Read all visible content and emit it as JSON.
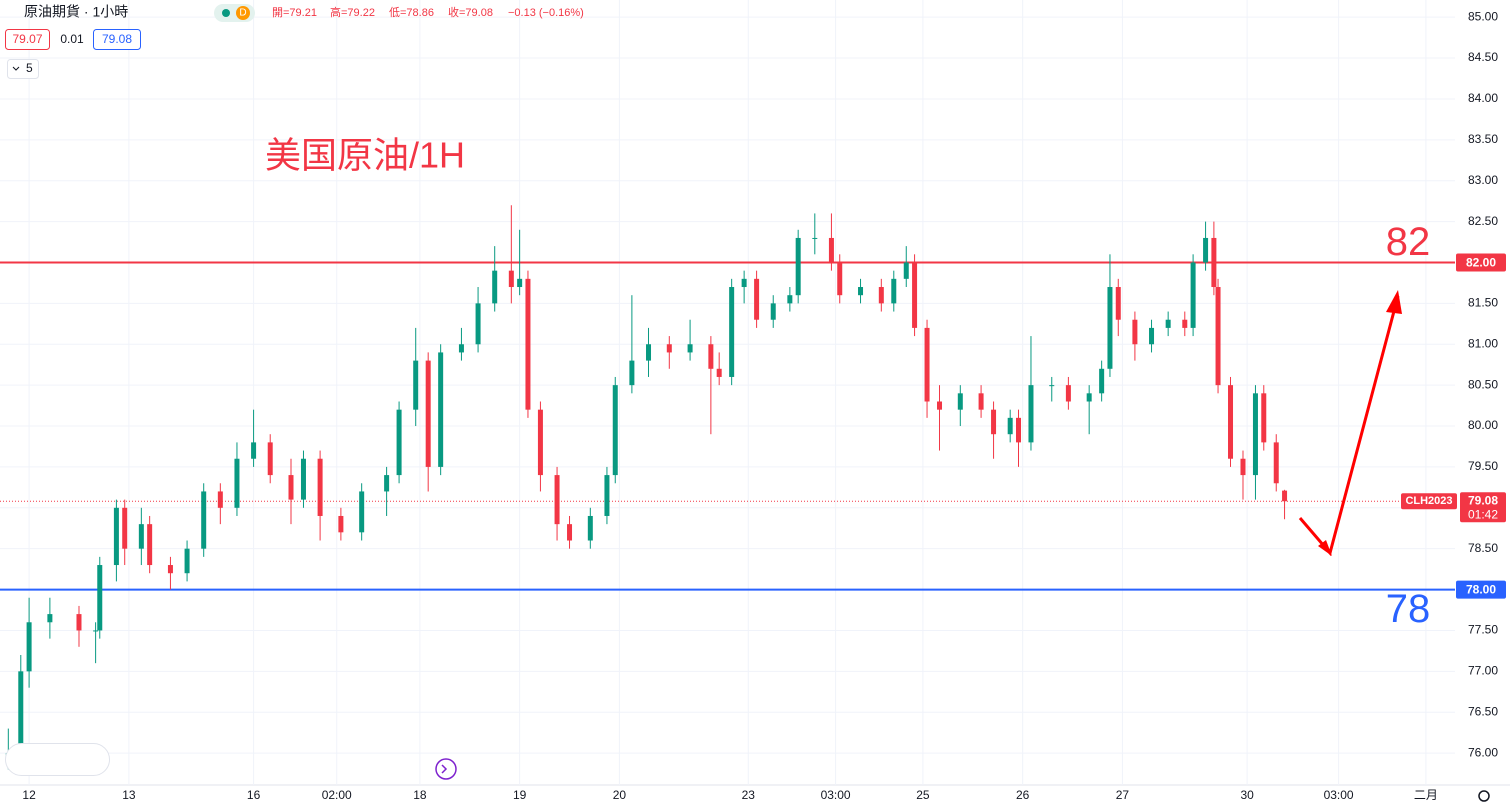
{
  "header": {
    "symbol": "原油期貨 · 1小時",
    "interval_badge": "D",
    "open": "開=79.21",
    "high": "高=79.22",
    "low": "低=78.86",
    "close": "收=79.08",
    "change": "−0.13 (−0.16%)",
    "bid": "79.07",
    "spread": "0.01",
    "ask": "79.08",
    "indicator_count": "5"
  },
  "chart_data": {
    "type": "candlestick",
    "annotation": "美国原油/1H",
    "up_color": "#089981",
    "down_color": "#f23645",
    "grid": true,
    "x": [
      0,
      3,
      5,
      10,
      17,
      21,
      22,
      26,
      28,
      32,
      34,
      39,
      43,
      47,
      51,
      55,
      59,
      63,
      68,
      71,
      75,
      80,
      85,
      91,
      94,
      98,
      101,
      104,
      109,
      113,
      117,
      121,
      123,
      125,
      128,
      132,
      135,
      140,
      144,
      146,
      150,
      154,
      159,
      164,
      169,
      171,
      174,
      177,
      180,
      184,
      188,
      190,
      194,
      198,
      200,
      205,
      210,
      213,
      216,
      218,
      221,
      224,
      229,
      234,
      237,
      241,
      243,
      246,
      251,
      255,
      260,
      263,
      265,
      267,
      271,
      275,
      279,
      283,
      285,
      288,
      290,
      291,
      294,
      297,
      300,
      302,
      305,
      307
    ],
    "ohlc": [
      [
        75.9,
        76.3,
        75.8,
        76.0
      ],
      [
        76.0,
        77.2,
        75.9,
        77.0
      ],
      [
        77.0,
        77.9,
        76.8,
        77.6
      ],
      [
        77.6,
        77.9,
        77.4,
        77.7
      ],
      [
        77.7,
        77.8,
        77.3,
        77.5
      ],
      [
        77.5,
        77.6,
        77.1,
        77.5
      ],
      [
        77.5,
        78.4,
        77.4,
        78.3
      ],
      [
        78.3,
        79.1,
        78.1,
        79.0
      ],
      [
        79.0,
        79.1,
        78.3,
        78.5
      ],
      [
        78.5,
        79.0,
        78.3,
        78.8
      ],
      [
        78.8,
        78.9,
        78.2,
        78.3
      ],
      [
        78.3,
        78.4,
        78.0,
        78.2
      ],
      [
        78.2,
        78.6,
        78.1,
        78.5
      ],
      [
        78.5,
        79.3,
        78.4,
        79.2
      ],
      [
        79.2,
        79.3,
        78.8,
        79.0
      ],
      [
        79.0,
        79.8,
        78.9,
        79.6
      ],
      [
        79.6,
        80.2,
        79.5,
        79.8
      ],
      [
        79.8,
        79.9,
        79.3,
        79.4
      ],
      [
        79.4,
        79.6,
        78.8,
        79.1
      ],
      [
        79.1,
        79.7,
        79.0,
        79.6
      ],
      [
        79.6,
        79.7,
        78.6,
        78.9
      ],
      [
        78.9,
        79.0,
        78.6,
        78.7
      ],
      [
        78.7,
        79.3,
        78.6,
        79.2
      ],
      [
        79.2,
        79.5,
        78.9,
        79.4
      ],
      [
        79.4,
        80.3,
        79.3,
        80.2
      ],
      [
        80.2,
        81.2,
        80.0,
        80.8
      ],
      [
        80.8,
        80.9,
        79.2,
        79.5
      ],
      [
        79.5,
        81.0,
        79.4,
        80.9
      ],
      [
        80.9,
        81.2,
        80.8,
        81.0
      ],
      [
        81.0,
        81.7,
        80.9,
        81.5
      ],
      [
        81.5,
        82.2,
        81.4,
        81.9
      ],
      [
        81.9,
        82.7,
        81.5,
        81.7
      ],
      [
        81.7,
        82.4,
        81.6,
        81.8
      ],
      [
        81.8,
        81.9,
        80.1,
        80.2
      ],
      [
        80.2,
        80.3,
        79.2,
        79.4
      ],
      [
        79.4,
        79.5,
        78.6,
        78.8
      ],
      [
        78.8,
        78.9,
        78.5,
        78.6
      ],
      [
        78.6,
        79.0,
        78.5,
        78.9
      ],
      [
        78.9,
        79.5,
        78.8,
        79.4
      ],
      [
        79.4,
        80.6,
        79.3,
        80.5
      ],
      [
        80.5,
        81.6,
        80.4,
        80.8
      ],
      [
        80.8,
        81.2,
        80.6,
        81.0
      ],
      [
        81.0,
        81.1,
        80.7,
        80.9
      ],
      [
        80.9,
        81.3,
        80.8,
        81.0
      ],
      [
        81.0,
        81.1,
        79.9,
        80.7
      ],
      [
        80.7,
        80.9,
        80.5,
        80.6
      ],
      [
        80.6,
        81.8,
        80.5,
        81.7
      ],
      [
        81.7,
        81.9,
        81.5,
        81.8
      ],
      [
        81.8,
        81.9,
        81.2,
        81.3
      ],
      [
        81.3,
        81.6,
        81.2,
        81.5
      ],
      [
        81.5,
        81.7,
        81.4,
        81.6
      ],
      [
        81.6,
        82.4,
        81.5,
        82.3
      ],
      [
        82.3,
        82.6,
        82.1,
        82.3
      ],
      [
        82.3,
        82.6,
        81.9,
        82.0
      ],
      [
        82.0,
        82.1,
        81.5,
        81.6
      ],
      [
        81.6,
        81.8,
        81.5,
        81.7
      ],
      [
        81.7,
        81.8,
        81.4,
        81.5
      ],
      [
        81.5,
        81.9,
        81.4,
        81.8
      ],
      [
        81.8,
        82.2,
        81.7,
        82.0
      ],
      [
        82.0,
        82.1,
        81.1,
        81.2
      ],
      [
        81.2,
        81.3,
        80.1,
        80.3
      ],
      [
        80.3,
        80.5,
        79.7,
        80.2
      ],
      [
        80.2,
        80.5,
        80.0,
        80.4
      ],
      [
        80.4,
        80.5,
        80.1,
        80.2
      ],
      [
        80.2,
        80.3,
        79.6,
        79.9
      ],
      [
        79.9,
        80.2,
        79.8,
        80.1
      ],
      [
        80.1,
        80.2,
        79.5,
        79.8
      ],
      [
        79.8,
        81.1,
        79.7,
        80.5
      ],
      [
        80.5,
        80.6,
        80.3,
        80.5
      ],
      [
        80.5,
        80.6,
        80.2,
        80.3
      ],
      [
        80.3,
        80.5,
        79.9,
        80.4
      ],
      [
        80.4,
        80.8,
        80.3,
        80.7
      ],
      [
        80.7,
        82.1,
        80.6,
        81.7
      ],
      [
        81.7,
        81.8,
        81.1,
        81.3
      ],
      [
        81.3,
        81.4,
        80.8,
        81.0
      ],
      [
        81.0,
        81.3,
        80.9,
        81.2
      ],
      [
        81.2,
        81.4,
        81.1,
        81.3
      ],
      [
        81.3,
        81.4,
        81.1,
        81.2
      ],
      [
        81.2,
        82.1,
        81.1,
        82.0
      ],
      [
        82.0,
        82.5,
        81.9,
        82.3
      ],
      [
        82.3,
        82.5,
        81.6,
        81.7
      ],
      [
        81.7,
        81.8,
        80.4,
        80.5
      ],
      [
        80.5,
        80.6,
        79.5,
        79.6
      ],
      [
        79.6,
        79.7,
        79.1,
        79.4
      ],
      [
        79.4,
        80.5,
        79.1,
        80.4
      ],
      [
        80.4,
        80.5,
        79.7,
        79.8
      ],
      [
        79.8,
        79.9,
        79.2,
        79.3
      ],
      [
        79.21,
        79.22,
        78.86,
        79.08
      ]
    ],
    "xlim": [
      -2,
      348
    ],
    "xticks": [
      {
        "value": 5,
        "label": "12"
      },
      {
        "value": 29,
        "label": "13"
      },
      {
        "value": 59,
        "label": "16"
      },
      {
        "value": 79,
        "label": "02:00"
      },
      {
        "value": 99,
        "label": "18"
      },
      {
        "value": 123,
        "label": "19"
      },
      {
        "value": 147,
        "label": "20"
      },
      {
        "value": 178,
        "label": "23"
      },
      {
        "value": 199,
        "label": "03:00"
      },
      {
        "value": 220,
        "label": "25"
      },
      {
        "value": 244,
        "label": "26"
      },
      {
        "value": 268,
        "label": "27"
      },
      {
        "value": 298,
        "label": "30"
      },
      {
        "value": 320,
        "label": "03:00"
      },
      {
        "value": 341,
        "label": "二月"
      }
    ],
    "ylim": [
      75.61,
      85.21
    ],
    "yticks": [
      {
        "value": 76,
        "label": "76.00"
      },
      {
        "value": 76.5,
        "label": "76.50"
      },
      {
        "value": 77,
        "label": "77.00"
      },
      {
        "value": 77.5,
        "label": "77.50"
      },
      {
        "value": 78.5,
        "label": "78.50"
      },
      {
        "value": 79,
        "label": "79.00"
      },
      {
        "value": 79.5,
        "label": "79.50"
      },
      {
        "value": 80,
        "label": "80.00"
      },
      {
        "value": 80.5,
        "label": "80.50"
      },
      {
        "value": 81,
        "label": "81.00"
      },
      {
        "value": 81.5,
        "label": "81.50"
      },
      {
        "value": 82.5,
        "label": "82.50"
      },
      {
        "value": 83,
        "label": "83.00"
      },
      {
        "value": 83.5,
        "label": "83.50"
      },
      {
        "value": 84,
        "label": "84.00"
      },
      {
        "value": 84.5,
        "label": "84.50"
      },
      {
        "value": 85,
        "label": "85.00"
      }
    ],
    "levels": [
      {
        "value": 82,
        "label": "82.00",
        "note": "82",
        "color": "#f23645"
      },
      {
        "value": 78,
        "label": "78.00",
        "note": "78",
        "color": "#2962ff"
      }
    ],
    "last_price": {
      "value": 79.08,
      "label": "79.08",
      "symbol": "CLH2023",
      "countdown": "01:42",
      "color": "#f23645"
    }
  }
}
